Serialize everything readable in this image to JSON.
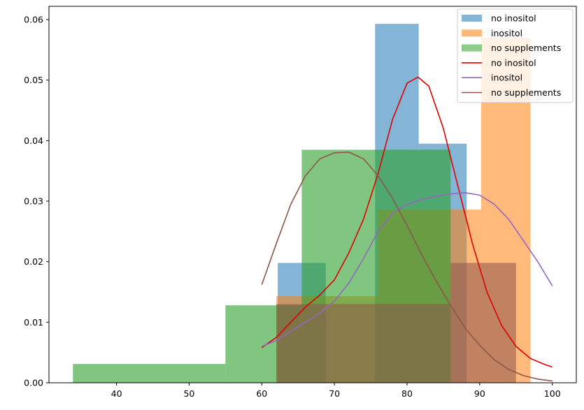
{
  "chart_data": {
    "type": "histogram",
    "title": "",
    "xlabel": "",
    "ylabel": "",
    "xlim": [
      30.7,
      103.3
    ],
    "ylim": [
      0,
      0.0622
    ],
    "grid": false,
    "legend_position": "top-right",
    "x_ticks": [
      40,
      50,
      60,
      70,
      80,
      90,
      100
    ],
    "y_ticks": [
      0.0,
      0.01,
      0.02,
      0.03,
      0.04,
      0.05,
      0.06
    ],
    "y_tick_labels": [
      "0.00",
      "0.01",
      "0.02",
      "0.03",
      "0.04",
      "0.05",
      "0.06"
    ],
    "histograms": [
      {
        "name": "no inositol",
        "color": "#1f77b4",
        "alpha": 0.55,
        "bins": [
          {
            "x0": 62.2,
            "x1": 68.8,
            "density": 0.0198
          },
          {
            "x0": 68.8,
            "x1": 75.6,
            "density": 0.0
          },
          {
            "x0": 75.6,
            "x1": 81.6,
            "density": 0.0593
          },
          {
            "x0": 81.6,
            "x1": 88.2,
            "density": 0.0395
          }
        ]
      },
      {
        "name": "inositol",
        "color": "#ff7f0e",
        "alpha": 0.55,
        "bins": [
          {
            "x0": 62.0,
            "x1": 76.0,
            "density": 0.0143
          },
          {
            "x0": 76.0,
            "x1": 90.2,
            "density": 0.0286
          },
          {
            "x0": 90.2,
            "x1": 97.0,
            "density": 0.057
          }
        ]
      },
      {
        "name": "no supplements",
        "color": "#2ca02c",
        "alpha": 0.6,
        "bins": [
          {
            "x0": 34.0,
            "x1": 55.0,
            "density": 0.0031
          },
          {
            "x0": 55.0,
            "x1": 65.5,
            "density": 0.0128
          },
          {
            "x0": 65.5,
            "x1": 76.0,
            "density": 0.0385
          },
          {
            "x0": 76.0,
            "x1": 86.0,
            "density": 0.0385
          }
        ]
      },
      {
        "name": "",
        "color": "#8c564b",
        "alpha": 0.55,
        "bins": [
          {
            "x0": 62.0,
            "x1": 86.0,
            "density": 0.013
          },
          {
            "x0": 86.0,
            "x1": 95.0,
            "density": 0.0198
          }
        ]
      }
    ],
    "series": [
      {
        "name": "no inositol",
        "color": "#e00000",
        "x": [
          60,
          62,
          64,
          66,
          68,
          70,
          72,
          74,
          76,
          78,
          80,
          81.5,
          83,
          85,
          87,
          89,
          91,
          93,
          95,
          97,
          99,
          100
        ],
        "y": [
          0.0058,
          0.0075,
          0.01,
          0.0125,
          0.0145,
          0.017,
          0.0215,
          0.027,
          0.0345,
          0.0435,
          0.0495,
          0.0505,
          0.049,
          0.042,
          0.0325,
          0.023,
          0.015,
          0.0095,
          0.006,
          0.004,
          0.003,
          0.0026
        ]
      },
      {
        "name": "inositol",
        "color": "#9467bd",
        "x": [
          60,
          62,
          64,
          66,
          68,
          70,
          72,
          74,
          76,
          78,
          80,
          82,
          84,
          86,
          88,
          90,
          92,
          94,
          96,
          98,
          100
        ],
        "y": [
          0.006,
          0.007,
          0.0085,
          0.01,
          0.0115,
          0.0135,
          0.0165,
          0.0205,
          0.025,
          0.028,
          0.0295,
          0.0303,
          0.0308,
          0.0312,
          0.0314,
          0.031,
          0.0295,
          0.027,
          0.0235,
          0.02,
          0.016
        ]
      },
      {
        "name": "no supplements",
        "color": "#8c564b",
        "x": [
          60,
          62,
          64,
          66,
          68,
          70,
          72,
          74,
          76,
          78,
          80,
          82,
          84,
          86,
          88,
          90,
          92,
          94,
          96,
          98,
          100
        ],
        "y": [
          0.0162,
          0.023,
          0.0295,
          0.0342,
          0.037,
          0.038,
          0.0381,
          0.037,
          0.0342,
          0.0305,
          0.026,
          0.0212,
          0.0168,
          0.0128,
          0.009,
          0.0062,
          0.0038,
          0.0022,
          0.0012,
          0.0006,
          0.0003
        ]
      }
    ],
    "legend": [
      {
        "label": "no inositol",
        "kind": "patch",
        "color": "#1f77b4"
      },
      {
        "label": "inositol",
        "kind": "patch",
        "color": "#ff7f0e"
      },
      {
        "label": "no supplements",
        "kind": "patch",
        "color": "#2ca02c"
      },
      {
        "label": "no inositol",
        "kind": "line",
        "color": "#e00000"
      },
      {
        "label": "inositol",
        "kind": "line",
        "color": "#9467bd"
      },
      {
        "label": "no supplements",
        "kind": "line",
        "color": "#8c564b"
      }
    ]
  }
}
